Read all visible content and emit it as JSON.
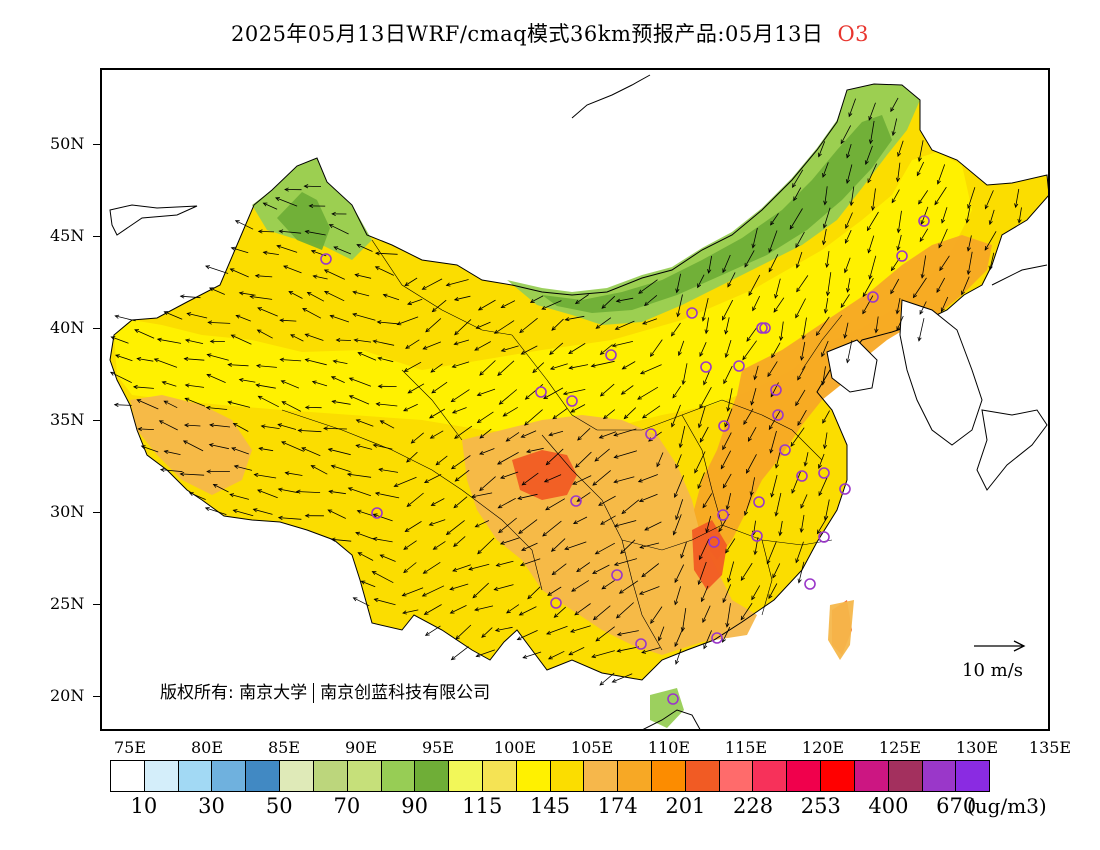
{
  "title": {
    "main": "2025年05月13日WRF/cmaq模式36km预报产品:05月13日",
    "pollutant": "O3"
  },
  "axes": {
    "lat_labels": [
      "50N",
      "45N",
      "40N",
      "35N",
      "30N",
      "25N",
      "20N"
    ],
    "lon_labels": [
      "75E",
      "80E",
      "85E",
      "90E",
      "95E",
      "100E",
      "105E",
      "110E",
      "115E",
      "120E",
      "125E",
      "130E",
      "135E"
    ]
  },
  "colorbar": {
    "colors": [
      "#ffffff",
      "#d4eefa",
      "#a2d9f4",
      "#6fb1de",
      "#4189c3",
      "#dfeab8",
      "#bcd67c",
      "#c6e07a",
      "#97cd55",
      "#6fae37",
      "#f2f759",
      "#f5e354",
      "#fff100",
      "#fbdd00",
      "#f6b74b",
      "#f7a825",
      "#fc8c00",
      "#f15b24",
      "#ff6b6b",
      "#f7315a",
      "#f0004c",
      "#ff0000",
      "#cc1682",
      "#a3305e",
      "#9a37c9",
      "#8a2be2"
    ],
    "labels": [
      "10",
      "30",
      "50",
      "70",
      "90",
      "115",
      "145",
      "174",
      "201",
      "228",
      "253",
      "400",
      "670"
    ],
    "unit": "(ug/m3)"
  },
  "reference_vector": {
    "label": "10 m/s"
  },
  "copyright": {
    "left": "版权所有: 南京大学",
    "right": "南京创蓝科技有限公司"
  },
  "map_colors": {
    "green_dark": "#6fae37",
    "green_light": "#97cd55",
    "yellow_green": "#f2f759",
    "yellow": "#fff100",
    "gold": "#fbdd00",
    "light_orange": "#f6b74b",
    "orange": "#f7a825",
    "dark_orange": "#f15b24",
    "station_marker": "#9a37c9"
  }
}
